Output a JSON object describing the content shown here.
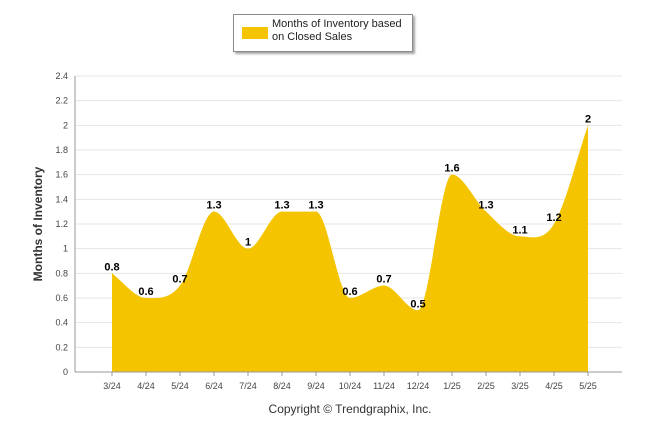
{
  "legend": {
    "label": "Months of Inventory based on Closed Sales"
  },
  "copyright": "Copyright © Trendgraphix, Inc.",
  "colors": {
    "area": "#F5C400",
    "grid": "#e6e6e6",
    "axis": "#999999"
  },
  "chart_data": {
    "type": "area",
    "title": "",
    "xlabel": "",
    "ylabel": "Months of Inventory",
    "ylim": [
      0,
      2.4
    ],
    "yticks": [
      "0",
      "0.2",
      "0.4",
      "0.6",
      "0.8",
      "1",
      "1.2",
      "1.4",
      "1.6",
      "1.8",
      "2",
      "2.2",
      "2.4"
    ],
    "grid": true,
    "legend_position": "top-center",
    "categories": [
      "3/24",
      "4/24",
      "5/24",
      "6/24",
      "7/24",
      "8/24",
      "9/24",
      "10/24",
      "11/24",
      "12/24",
      "1/25",
      "2/25",
      "3/25",
      "4/25",
      "5/25"
    ],
    "series": [
      {
        "name": "Months of Inventory based on Closed Sales",
        "values": [
          0.8,
          0.6,
          0.7,
          1.3,
          1,
          1.3,
          1.3,
          0.6,
          0.7,
          0.5,
          1.6,
          1.3,
          1.1,
          1.2,
          2
        ],
        "labels": [
          "0.8",
          "0.6",
          "0.7",
          "1.3",
          "1",
          "1.3",
          "1.3",
          "0.6",
          "0.7",
          "0.5",
          "1.6",
          "1.3",
          "1.1",
          "1.2",
          "2"
        ]
      }
    ]
  }
}
